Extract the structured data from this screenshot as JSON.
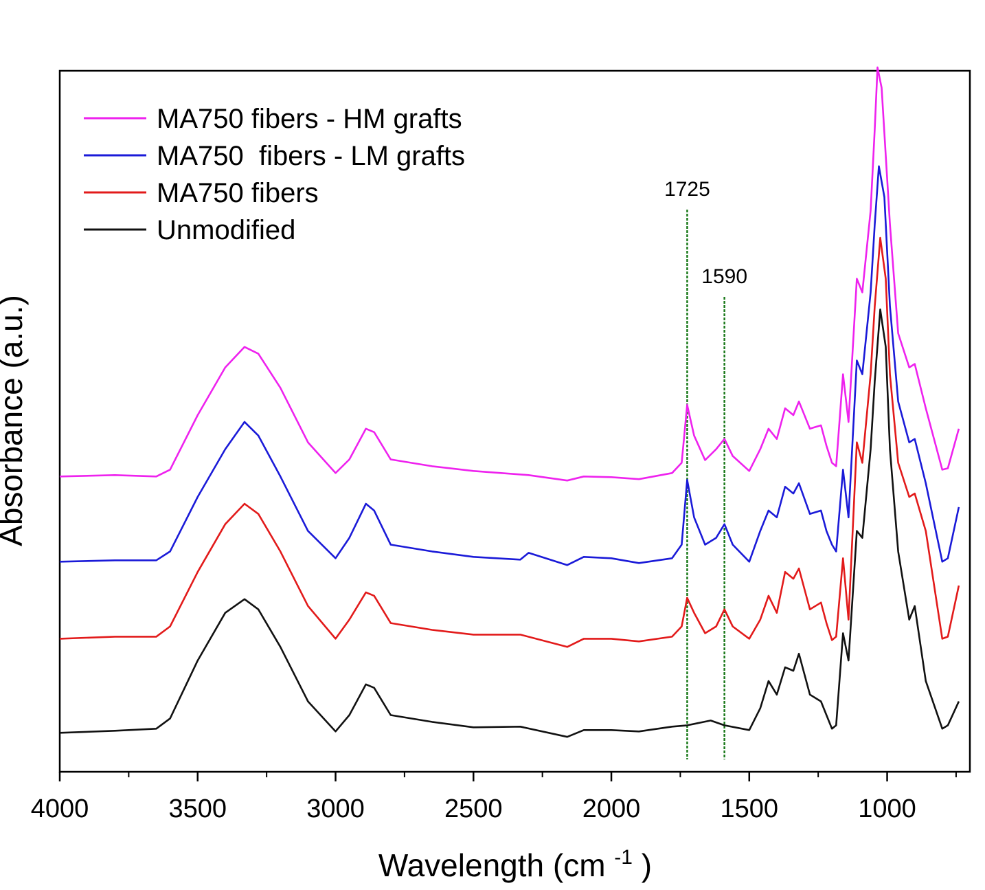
{
  "chart_data": {
    "type": "line",
    "title": "",
    "xlabel": "Wavelength (cm",
    "xlabel_sup": "-1",
    "xlabel_close": ")",
    "ylabel": "Absorbance (a.u.)",
    "xlim": [
      4000,
      700
    ],
    "x_reversed": true,
    "ylim": [
      0,
      1
    ],
    "x_ticks": [
      4000,
      3500,
      3000,
      2500,
      2000,
      1500,
      1000
    ],
    "x_tick_labels": [
      "4000",
      "3500",
      "3000",
      "2500",
      "2000",
      "1500",
      "1000"
    ],
    "grid": false,
    "legend_position": "top-left",
    "annotations": [
      {
        "label": "1725",
        "x": 1725
      },
      {
        "label": "1590",
        "x": 1590
      }
    ],
    "series": [
      {
        "name": "MA750 fibers - HM grafts",
        "color": "#ee22ee",
        "points": [
          [
            4000,
            0.41
          ],
          [
            3800,
            0.412
          ],
          [
            3650,
            0.41
          ],
          [
            3600,
            0.42
          ],
          [
            3500,
            0.5
          ],
          [
            3400,
            0.57
          ],
          [
            3330,
            0.6
          ],
          [
            3280,
            0.59
          ],
          [
            3200,
            0.54
          ],
          [
            3100,
            0.46
          ],
          [
            3000,
            0.415
          ],
          [
            2950,
            0.435
          ],
          [
            2890,
            0.48
          ],
          [
            2860,
            0.475
          ],
          [
            2800,
            0.435
          ],
          [
            2650,
            0.425
          ],
          [
            2500,
            0.418
          ],
          [
            2300,
            0.412
          ],
          [
            2160,
            0.404
          ],
          [
            2100,
            0.41
          ],
          [
            2000,
            0.409
          ],
          [
            1900,
            0.406
          ],
          [
            1780,
            0.415
          ],
          [
            1745,
            0.43
          ],
          [
            1725,
            0.515
          ],
          [
            1700,
            0.47
          ],
          [
            1660,
            0.434
          ],
          [
            1620,
            0.45
          ],
          [
            1590,
            0.465
          ],
          [
            1560,
            0.44
          ],
          [
            1500,
            0.418
          ],
          [
            1460,
            0.45
          ],
          [
            1430,
            0.48
          ],
          [
            1400,
            0.465
          ],
          [
            1370,
            0.51
          ],
          [
            1340,
            0.5
          ],
          [
            1320,
            0.52
          ],
          [
            1280,
            0.48
          ],
          [
            1240,
            0.485
          ],
          [
            1220,
            0.455
          ],
          [
            1200,
            0.43
          ],
          [
            1185,
            0.425
          ],
          [
            1160,
            0.56
          ],
          [
            1140,
            0.49
          ],
          [
            1110,
            0.7
          ],
          [
            1090,
            0.68
          ],
          [
            1060,
            0.8
          ],
          [
            1045,
            0.92
          ],
          [
            1035,
            1.01
          ],
          [
            1020,
            0.98
          ],
          [
            990,
            0.78
          ],
          [
            960,
            0.62
          ],
          [
            920,
            0.57
          ],
          [
            900,
            0.575
          ],
          [
            860,
            0.51
          ],
          [
            800,
            0.42
          ],
          [
            780,
            0.422
          ],
          [
            740,
            0.48
          ]
        ]
      },
      {
        "name": "MA750  fibers - LM grafts",
        "color": "#1a1ad8",
        "points": [
          [
            4000,
            0.285
          ],
          [
            3800,
            0.287
          ],
          [
            3650,
            0.287
          ],
          [
            3600,
            0.3
          ],
          [
            3500,
            0.38
          ],
          [
            3400,
            0.45
          ],
          [
            3330,
            0.49
          ],
          [
            3280,
            0.47
          ],
          [
            3200,
            0.41
          ],
          [
            3100,
            0.33
          ],
          [
            3000,
            0.29
          ],
          [
            2950,
            0.32
          ],
          [
            2890,
            0.37
          ],
          [
            2860,
            0.36
          ],
          [
            2800,
            0.31
          ],
          [
            2650,
            0.3
          ],
          [
            2500,
            0.292
          ],
          [
            2330,
            0.288
          ],
          [
            2300,
            0.298
          ],
          [
            2160,
            0.28
          ],
          [
            2100,
            0.292
          ],
          [
            2000,
            0.29
          ],
          [
            1900,
            0.283
          ],
          [
            1780,
            0.29
          ],
          [
            1745,
            0.31
          ],
          [
            1725,
            0.405
          ],
          [
            1700,
            0.35
          ],
          [
            1660,
            0.31
          ],
          [
            1620,
            0.32
          ],
          [
            1590,
            0.34
          ],
          [
            1560,
            0.31
          ],
          [
            1500,
            0.285
          ],
          [
            1460,
            0.33
          ],
          [
            1430,
            0.36
          ],
          [
            1400,
            0.35
          ],
          [
            1370,
            0.395
          ],
          [
            1340,
            0.385
          ],
          [
            1320,
            0.4
          ],
          [
            1280,
            0.355
          ],
          [
            1240,
            0.36
          ],
          [
            1220,
            0.33
          ],
          [
            1200,
            0.31
          ],
          [
            1185,
            0.3
          ],
          [
            1160,
            0.42
          ],
          [
            1140,
            0.35
          ],
          [
            1110,
            0.58
          ],
          [
            1090,
            0.56
          ],
          [
            1060,
            0.68
          ],
          [
            1045,
            0.78
          ],
          [
            1030,
            0.865
          ],
          [
            1010,
            0.82
          ],
          [
            990,
            0.66
          ],
          [
            960,
            0.52
          ],
          [
            920,
            0.46
          ],
          [
            900,
            0.465
          ],
          [
            860,
            0.4
          ],
          [
            800,
            0.285
          ],
          [
            780,
            0.29
          ],
          [
            740,
            0.365
          ]
        ]
      },
      {
        "name": "MA750 fibers",
        "color": "#e21a1a",
        "points": [
          [
            4000,
            0.172
          ],
          [
            3800,
            0.175
          ],
          [
            3650,
            0.175
          ],
          [
            3600,
            0.19
          ],
          [
            3500,
            0.27
          ],
          [
            3400,
            0.34
          ],
          [
            3330,
            0.37
          ],
          [
            3280,
            0.355
          ],
          [
            3200,
            0.3
          ],
          [
            3100,
            0.22
          ],
          [
            3000,
            0.172
          ],
          [
            2950,
            0.2
          ],
          [
            2890,
            0.24
          ],
          [
            2860,
            0.235
          ],
          [
            2800,
            0.195
          ],
          [
            2650,
            0.185
          ],
          [
            2500,
            0.178
          ],
          [
            2330,
            0.178
          ],
          [
            2160,
            0.16
          ],
          [
            2100,
            0.172
          ],
          [
            2000,
            0.172
          ],
          [
            1900,
            0.168
          ],
          [
            1780,
            0.175
          ],
          [
            1745,
            0.19
          ],
          [
            1725,
            0.232
          ],
          [
            1700,
            0.21
          ],
          [
            1660,
            0.18
          ],
          [
            1620,
            0.19
          ],
          [
            1590,
            0.215
          ],
          [
            1560,
            0.19
          ],
          [
            1500,
            0.172
          ],
          [
            1460,
            0.2
          ],
          [
            1430,
            0.235
          ],
          [
            1400,
            0.21
          ],
          [
            1370,
            0.27
          ],
          [
            1340,
            0.26
          ],
          [
            1320,
            0.275
          ],
          [
            1280,
            0.215
          ],
          [
            1240,
            0.225
          ],
          [
            1220,
            0.195
          ],
          [
            1200,
            0.17
          ],
          [
            1185,
            0.175
          ],
          [
            1160,
            0.29
          ],
          [
            1140,
            0.2
          ],
          [
            1110,
            0.46
          ],
          [
            1090,
            0.43
          ],
          [
            1060,
            0.56
          ],
          [
            1045,
            0.66
          ],
          [
            1025,
            0.76
          ],
          [
            1005,
            0.7
          ],
          [
            990,
            0.56
          ],
          [
            960,
            0.43
          ],
          [
            920,
            0.38
          ],
          [
            900,
            0.385
          ],
          [
            860,
            0.33
          ],
          [
            800,
            0.172
          ],
          [
            780,
            0.175
          ],
          [
            740,
            0.25
          ]
        ]
      },
      {
        "name": "Unmodified",
        "color": "#111111",
        "points": [
          [
            4000,
            0.034
          ],
          [
            3800,
            0.037
          ],
          [
            3650,
            0.04
          ],
          [
            3600,
            0.055
          ],
          [
            3500,
            0.14
          ],
          [
            3400,
            0.21
          ],
          [
            3330,
            0.23
          ],
          [
            3280,
            0.215
          ],
          [
            3200,
            0.16
          ],
          [
            3100,
            0.08
          ],
          [
            3000,
            0.036
          ],
          [
            2950,
            0.06
          ],
          [
            2890,
            0.105
          ],
          [
            2860,
            0.1
          ],
          [
            2800,
            0.06
          ],
          [
            2650,
            0.05
          ],
          [
            2500,
            0.042
          ],
          [
            2330,
            0.043
          ],
          [
            2160,
            0.028
          ],
          [
            2100,
            0.038
          ],
          [
            2000,
            0.038
          ],
          [
            1900,
            0.036
          ],
          [
            1780,
            0.043
          ],
          [
            1725,
            0.045
          ],
          [
            1640,
            0.052
          ],
          [
            1590,
            0.045
          ],
          [
            1500,
            0.038
          ],
          [
            1460,
            0.07
          ],
          [
            1430,
            0.11
          ],
          [
            1400,
            0.09
          ],
          [
            1370,
            0.13
          ],
          [
            1340,
            0.125
          ],
          [
            1320,
            0.15
          ],
          [
            1280,
            0.09
          ],
          [
            1240,
            0.08
          ],
          [
            1220,
            0.06
          ],
          [
            1200,
            0.04
          ],
          [
            1185,
            0.045
          ],
          [
            1160,
            0.18
          ],
          [
            1140,
            0.14
          ],
          [
            1110,
            0.33
          ],
          [
            1090,
            0.32
          ],
          [
            1060,
            0.45
          ],
          [
            1045,
            0.55
          ],
          [
            1025,
            0.655
          ],
          [
            1005,
            0.6
          ],
          [
            990,
            0.45
          ],
          [
            960,
            0.3
          ],
          [
            920,
            0.2
          ],
          [
            900,
            0.22
          ],
          [
            860,
            0.11
          ],
          [
            800,
            0.04
          ],
          [
            780,
            0.045
          ],
          [
            740,
            0.08
          ]
        ]
      }
    ]
  }
}
